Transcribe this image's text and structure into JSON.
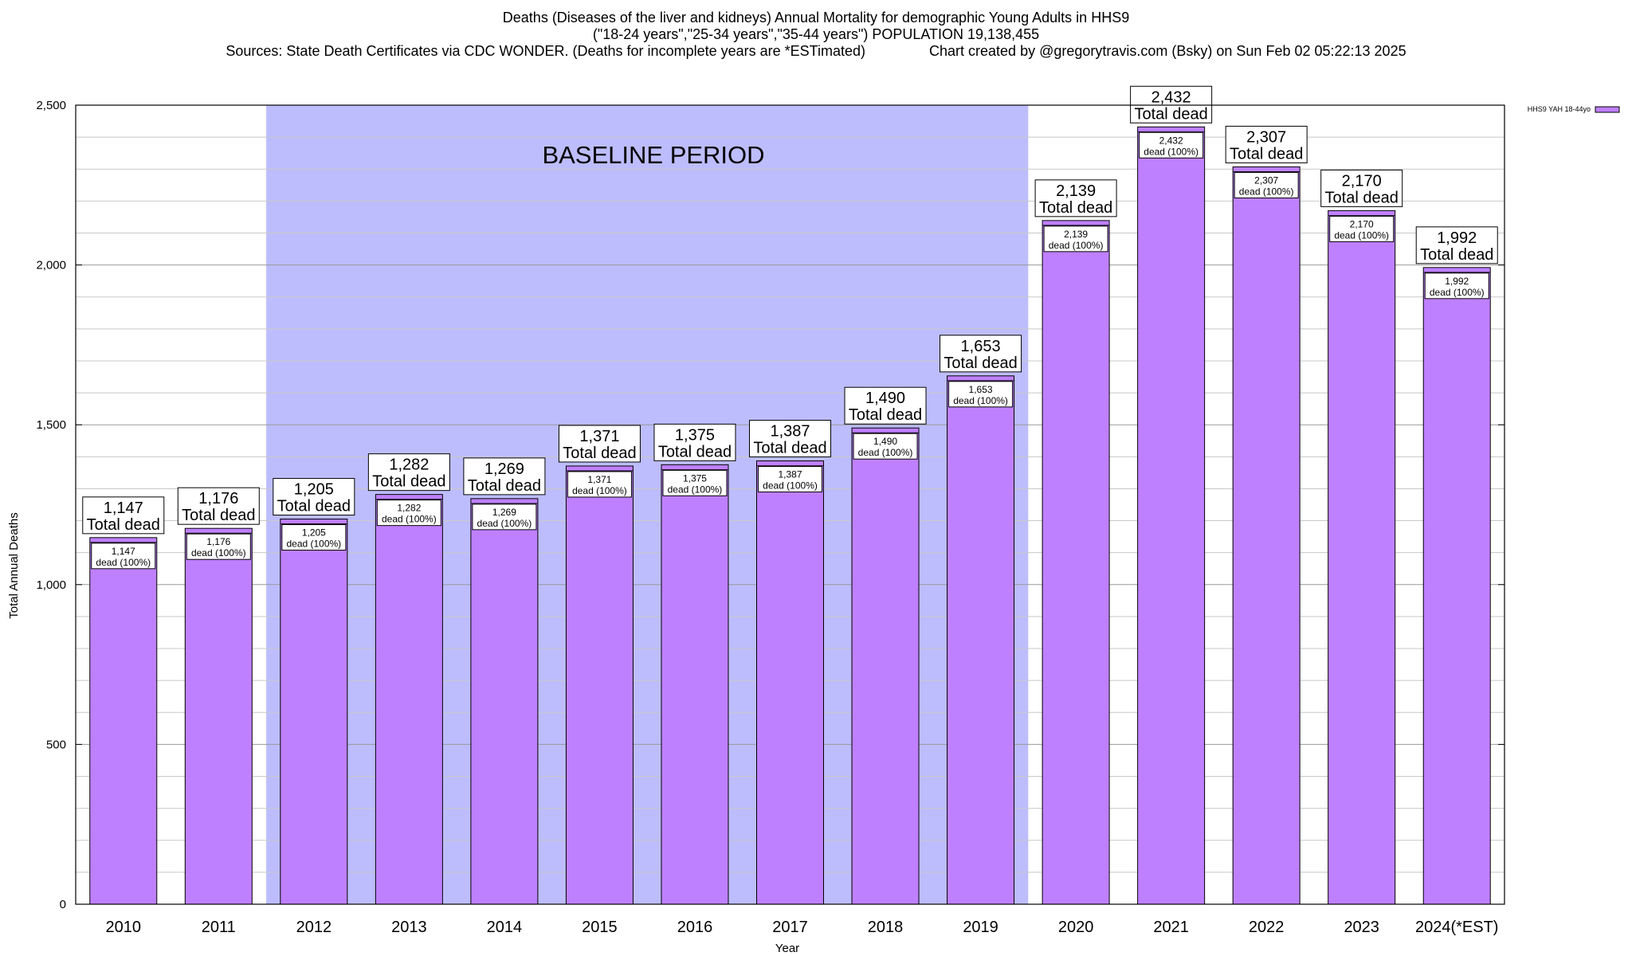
{
  "chart_data": {
    "type": "bar",
    "title_lines": [
      "Deaths (Diseases of the liver and kidneys) Annual Mortality for demographic Young Adults in HHS9",
      "(\"18-24 years\",\"25-34 years\",\"35-44 years\") POPULATION 19,138,455",
      "Sources: State Death Certificates via CDC WONDER. (Deaths for incomplete years are *ESTimated)                Chart created by @gregorytravis.com (Bsky) on Sun Feb 02 05:22:13 2025"
    ],
    "xlabel": "Year",
    "ylabel": "Total Annual Deaths",
    "ylim": [
      0,
      2500
    ],
    "yticks": [
      0,
      500,
      1000,
      1500,
      2000,
      2500
    ],
    "ytick_labels": [
      "0",
      "500",
      "1,000",
      "1,500",
      "2,000",
      "2,500"
    ],
    "categories": [
      "2010",
      "2011",
      "2012",
      "2013",
      "2014",
      "2015",
      "2016",
      "2017",
      "2018",
      "2019",
      "2020",
      "2021",
      "2022",
      "2023",
      "2024(*EST)"
    ],
    "series": [
      {
        "name": "HHS9 YAH 18-44yo",
        "color": "#bf80ff",
        "values": [
          1147,
          1176,
          1205,
          1282,
          1269,
          1371,
          1375,
          1387,
          1490,
          1653,
          2139,
          2432,
          2307,
          2170,
          1992
        ]
      }
    ],
    "total_labels": [
      "1,147",
      "1,176",
      "1,205",
      "1,282",
      "1,269",
      "1,371",
      "1,375",
      "1,387",
      "1,490",
      "1,653",
      "2,139",
      "2,432",
      "2,307",
      "2,170",
      "1,992"
    ],
    "total_suffix": "Total dead",
    "inner_suffix": "dead (100%)",
    "baseline": {
      "label": "BASELINE PERIOD",
      "from_category": "2012",
      "to_category": "2019",
      "color": "#bdbdfd"
    },
    "legend": {
      "placement": "top-right",
      "label": "HHS9 YAH 18-44yo"
    },
    "grid": true
  }
}
